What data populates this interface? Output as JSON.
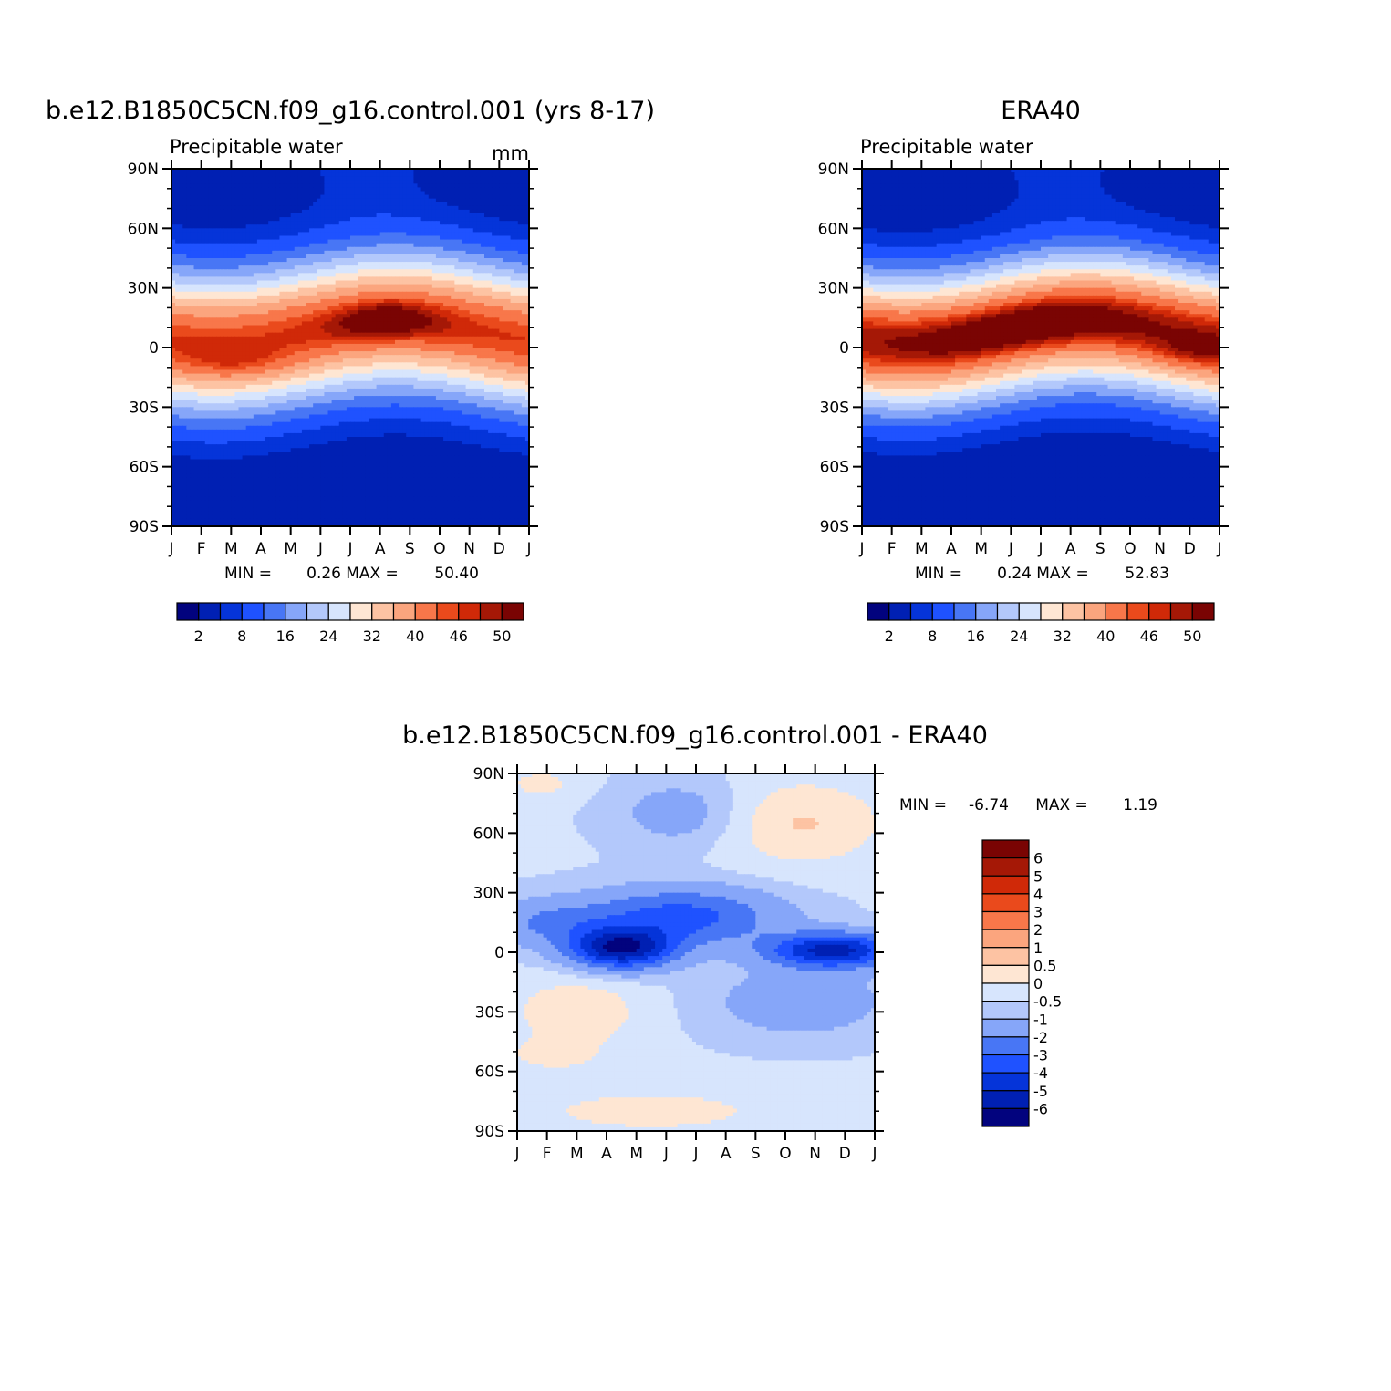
{
  "chart_data": [
    {
      "type": "heatmap",
      "title": "b.e12.B1850C5CN.f09_g16.control.001 (yrs 8-17)",
      "subtitle": "Precipitable water",
      "units": "mm",
      "x_ticks": [
        "J",
        "F",
        "M",
        "A",
        "M",
        "J",
        "J",
        "A",
        "S",
        "O",
        "N",
        "D",
        "J"
      ],
      "y_ticks": [
        "90N",
        "60N",
        "30N",
        "0",
        "30S",
        "60S",
        "90S"
      ],
      "min_label": "MIN =",
      "min_value": "0.26",
      "max_label": "MAX =",
      "max_value": "50.40",
      "colorbar_labels": [
        "2",
        "8",
        "16",
        "24",
        "32",
        "40",
        "46",
        "50"
      ],
      "levels": [
        2,
        5,
        8,
        12,
        16,
        20,
        24,
        28,
        32,
        36,
        40,
        44,
        46,
        48,
        50
      ],
      "colors": [
        "#02037e",
        "#0020b3",
        "#0534d9",
        "#1f52ff",
        "#4876f5",
        "#86a6f9",
        "#b3c8fb",
        "#d7e5fd",
        "#fee6d3",
        "#fdc3a3",
        "#fba57e",
        "#f8774a",
        "#ea4a1c",
        "#d02908",
        "#a51806",
        "#7a0403"
      ],
      "field": "model"
    },
    {
      "type": "heatmap",
      "title": "ERA40",
      "subtitle": "Precipitable water",
      "units": "",
      "x_ticks": [
        "J",
        "F",
        "M",
        "A",
        "M",
        "J",
        "J",
        "A",
        "S",
        "O",
        "N",
        "D",
        "J"
      ],
      "y_ticks": [
        "90N",
        "60N",
        "30N",
        "0",
        "30S",
        "60S",
        "90S"
      ],
      "min_label": "MIN =",
      "min_value": "0.24",
      "max_label": "MAX =",
      "max_value": "52.83",
      "colorbar_labels": [
        "2",
        "8",
        "16",
        "24",
        "32",
        "40",
        "46",
        "50"
      ],
      "levels": [
        2,
        5,
        8,
        12,
        16,
        20,
        24,
        28,
        32,
        36,
        40,
        44,
        46,
        48,
        50
      ],
      "colors": [
        "#02037e",
        "#0020b3",
        "#0534d9",
        "#1f52ff",
        "#4876f5",
        "#86a6f9",
        "#b3c8fb",
        "#d7e5fd",
        "#fee6d3",
        "#fdc3a3",
        "#fba57e",
        "#f8774a",
        "#ea4a1c",
        "#d02908",
        "#a51806",
        "#7a0403"
      ],
      "field": "obs"
    },
    {
      "type": "heatmap",
      "title": "b.e12.B1850C5CN.f09_g16.control.001  -  ERA40",
      "subtitle": "",
      "units": "",
      "x_ticks": [
        "J",
        "F",
        "M",
        "A",
        "M",
        "J",
        "J",
        "A",
        "S",
        "O",
        "N",
        "D",
        "J"
      ],
      "y_ticks": [
        "90N",
        "60N",
        "30N",
        "0",
        "30S",
        "60S",
        "90S"
      ],
      "min_label": "MIN =",
      "min_value": "-6.74",
      "max_label": "MAX =",
      "max_value": "1.19",
      "colorbar_labels": [
        "6",
        "5",
        "4",
        "3",
        "2",
        "1",
        "0.5",
        "0",
        "-0.5",
        "-1",
        "-2",
        "-3",
        "-4",
        "-5",
        "-6"
      ],
      "levels": [
        -6,
        -5,
        -4,
        -3,
        -2,
        -1,
        -0.5,
        0,
        0.5,
        1,
        2,
        3,
        4,
        5,
        6
      ],
      "colors": [
        "#02037e",
        "#0020b3",
        "#0534d9",
        "#1f52ff",
        "#4876f5",
        "#86a6f9",
        "#b3c8fb",
        "#d7e5fd",
        "#fee6d3",
        "#fdc3a3",
        "#fba57e",
        "#f8774a",
        "#ea4a1c",
        "#d02908",
        "#a51806",
        "#7a0403"
      ],
      "field": "diff"
    }
  ]
}
